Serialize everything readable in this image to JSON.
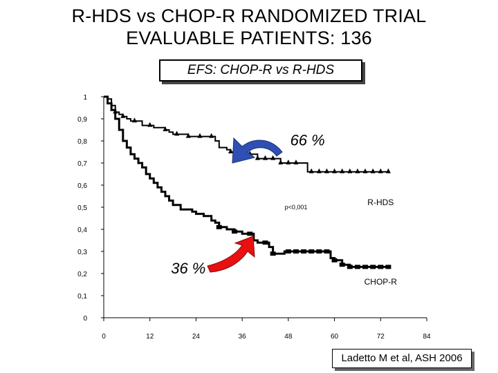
{
  "header": {
    "title_line1": "R-HDS vs CHOP-R  RANDOMIZED TRIAL",
    "title_line2": "EVALUABLE PATIENTS: 136"
  },
  "citation": "Ladetto M et al, ASH 2006",
  "colors": {
    "line": "#000000",
    "arrow_blue": "#2f4fb4",
    "arrow_red": "#e81010"
  },
  "chart_data": {
    "type": "line",
    "title": "EFS: CHOP-R vs R-HDS",
    "xlim": [
      0,
      84
    ],
    "ylim": [
      0,
      1
    ],
    "x_ticks": [
      "0",
      "12",
      "24",
      "36",
      "48",
      "60",
      "72",
      "84"
    ],
    "y_ticks": [
      "0",
      "0,1",
      "0,2",
      "0,3",
      "0,4",
      "0,5",
      "0,6",
      "0,7",
      "0,8",
      "0,9",
      "1"
    ],
    "grid": false,
    "series": [
      {
        "name": "R-HDS",
        "step_points": [
          [
            0,
            1
          ],
          [
            1,
            0.99
          ],
          [
            2,
            0.96
          ],
          [
            3,
            0.93
          ],
          [
            4,
            0.92
          ],
          [
            5,
            0.91
          ],
          [
            6,
            0.9
          ],
          [
            7,
            0.89
          ],
          [
            9,
            0.89
          ],
          [
            10,
            0.87
          ],
          [
            12,
            0.87
          ],
          [
            13,
            0.86
          ],
          [
            16,
            0.85
          ],
          [
            17,
            0.84
          ],
          [
            18,
            0.83
          ],
          [
            21,
            0.83
          ],
          [
            22,
            0.82
          ],
          [
            28,
            0.82
          ],
          [
            29,
            0.8
          ],
          [
            30,
            0.77
          ],
          [
            32,
            0.76
          ],
          [
            33,
            0.75
          ],
          [
            36,
            0.75
          ],
          [
            37,
            0.74
          ],
          [
            39,
            0.74
          ],
          [
            40,
            0.72
          ],
          [
            45,
            0.72
          ],
          [
            46,
            0.7
          ],
          [
            52,
            0.7
          ],
          [
            53,
            0.66
          ],
          [
            61,
            0.66
          ],
          [
            66,
            0.66
          ],
          [
            74,
            0.66
          ]
        ],
        "censor_x": [
          3,
          5,
          8,
          12,
          16,
          19,
          22,
          25,
          28,
          33,
          38,
          40,
          42,
          44,
          46,
          48,
          50,
          54,
          56,
          58,
          60,
          62,
          64,
          66,
          68,
          70,
          72,
          74
        ]
      },
      {
        "name": "CHOP-R",
        "step_points": [
          [
            0,
            1
          ],
          [
            1,
            0.97
          ],
          [
            2,
            0.94
          ],
          [
            3,
            0.9
          ],
          [
            4,
            0.85
          ],
          [
            5,
            0.8
          ],
          [
            6,
            0.77
          ],
          [
            7,
            0.74
          ],
          [
            8,
            0.72
          ],
          [
            9,
            0.7
          ],
          [
            10,
            0.68
          ],
          [
            11,
            0.65
          ],
          [
            12,
            0.63
          ],
          [
            13,
            0.61
          ],
          [
            14,
            0.59
          ],
          [
            15,
            0.57
          ],
          [
            16,
            0.55
          ],
          [
            17,
            0.53
          ],
          [
            18,
            0.51
          ],
          [
            20,
            0.49
          ],
          [
            22,
            0.49
          ],
          [
            23,
            0.48
          ],
          [
            24,
            0.47
          ],
          [
            26,
            0.46
          ],
          [
            28,
            0.44
          ],
          [
            29,
            0.43
          ],
          [
            30,
            0.41
          ],
          [
            32,
            0.4
          ],
          [
            33,
            0.4
          ],
          [
            34,
            0.39
          ],
          [
            36,
            0.38
          ],
          [
            38,
            0.38
          ],
          [
            39,
            0.35
          ],
          [
            40,
            0.34
          ],
          [
            42,
            0.34
          ],
          [
            43,
            0.32
          ],
          [
            44,
            0.29
          ],
          [
            46,
            0.29
          ],
          [
            47,
            0.3
          ],
          [
            58,
            0.3
          ],
          [
            59,
            0.27
          ],
          [
            60,
            0.26
          ],
          [
            62,
            0.24
          ],
          [
            64,
            0.23
          ],
          [
            72,
            0.23
          ],
          [
            74,
            0.23
          ]
        ],
        "censor_x": [
          30,
          34,
          38,
          42,
          44,
          48,
          50,
          52,
          54,
          56,
          58,
          60,
          62,
          64,
          66,
          68,
          70,
          72,
          74
        ]
      }
    ],
    "annotations": [
      {
        "text": "66 %",
        "x": 53,
        "y": 0.78
      },
      {
        "text": "36 %",
        "x": 22,
        "y": 0.2
      },
      {
        "text": "R-HDS",
        "x": 72,
        "y": 0.51
      },
      {
        "text": "p<0,001",
        "x": 50,
        "y": 0.49
      },
      {
        "text": "CHOP-R",
        "x": 72,
        "y": 0.15
      }
    ]
  }
}
